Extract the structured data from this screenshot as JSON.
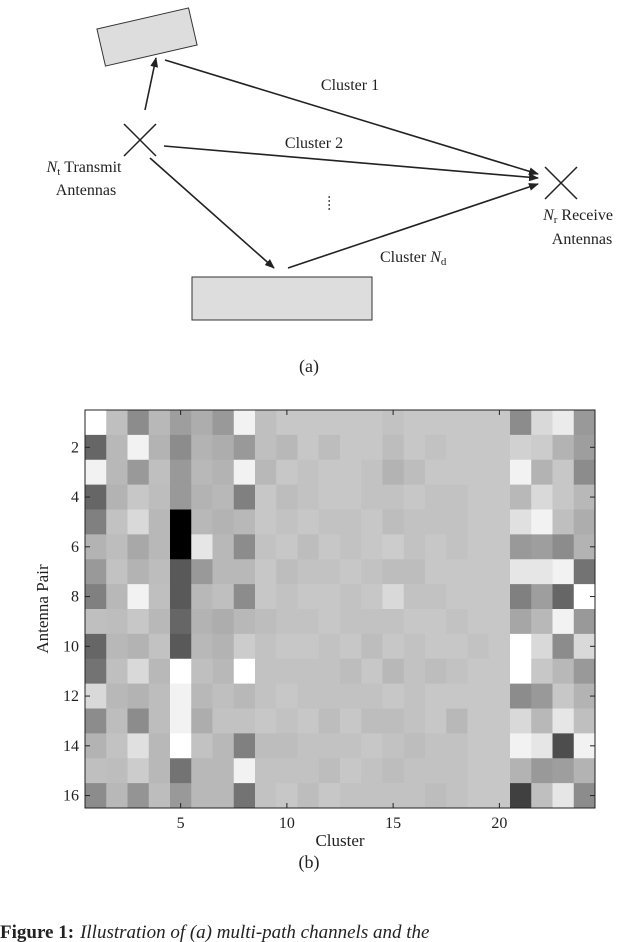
{
  "diagram": {
    "transmitter": {
      "symbol": "N",
      "subscript": "t",
      "line1": "Transmit",
      "line2": "Antennas"
    },
    "receiver": {
      "symbol": "N",
      "subscript": "r",
      "line1": "Receive",
      "line2": "Antennas"
    },
    "clusters": [
      {
        "text": "Cluster 1"
      },
      {
        "text": "Cluster 2"
      },
      {
        "text": "Cluster",
        "symbol": "N",
        "subscript": "d"
      }
    ],
    "panel_label": "(a)"
  },
  "chart_data": {
    "type": "heatmap",
    "xlabel": "Cluster",
    "ylabel": "Antenna Pair",
    "xlim": [
      0.5,
      24.5
    ],
    "ylim": [
      0.5,
      16.5
    ],
    "y_reversed": true,
    "xticks": [
      5,
      10,
      15,
      20
    ],
    "yticks": [
      2,
      4,
      6,
      8,
      10,
      12,
      14,
      16
    ],
    "colormap": "gray",
    "clim": [
      0,
      1
    ],
    "values": [
      [
        1.0,
        0.75,
        0.55,
        0.72,
        0.62,
        0.68,
        0.6,
        0.95,
        0.75,
        0.78,
        0.78,
        0.78,
        0.78,
        0.78,
        0.76,
        0.78,
        0.78,
        0.78,
        0.78,
        0.78,
        0.55,
        0.85,
        0.92,
        0.6
      ],
      [
        0.4,
        0.72,
        0.95,
        0.7,
        0.55,
        0.7,
        0.68,
        0.6,
        0.75,
        0.72,
        0.78,
        0.74,
        0.78,
        0.78,
        0.74,
        0.78,
        0.76,
        0.78,
        0.78,
        0.78,
        0.82,
        0.8,
        0.7,
        0.62
      ],
      [
        0.95,
        0.72,
        0.6,
        0.75,
        0.6,
        0.72,
        0.7,
        0.95,
        0.72,
        0.78,
        0.76,
        0.78,
        0.78,
        0.76,
        0.7,
        0.74,
        0.78,
        0.78,
        0.78,
        0.78,
        0.95,
        0.7,
        0.78,
        0.55
      ],
      [
        0.4,
        0.7,
        0.78,
        0.74,
        0.6,
        0.7,
        0.72,
        0.5,
        0.78,
        0.74,
        0.76,
        0.78,
        0.78,
        0.76,
        0.76,
        0.78,
        0.76,
        0.76,
        0.78,
        0.78,
        0.72,
        0.85,
        0.78,
        0.72
      ],
      [
        0.5,
        0.76,
        0.85,
        0.72,
        0.0,
        0.72,
        0.7,
        0.72,
        0.78,
        0.76,
        0.78,
        0.76,
        0.76,
        0.78,
        0.74,
        0.76,
        0.76,
        0.76,
        0.78,
        0.78,
        0.88,
        0.95,
        0.75,
        0.68
      ],
      [
        0.7,
        0.74,
        0.66,
        0.72,
        0.0,
        0.9,
        0.72,
        0.55,
        0.76,
        0.78,
        0.74,
        0.78,
        0.76,
        0.78,
        0.8,
        0.76,
        0.78,
        0.76,
        0.78,
        0.78,
        0.6,
        0.62,
        0.55,
        0.7
      ],
      [
        0.6,
        0.76,
        0.7,
        0.74,
        0.35,
        0.6,
        0.72,
        0.72,
        0.78,
        0.74,
        0.76,
        0.76,
        0.78,
        0.76,
        0.74,
        0.74,
        0.78,
        0.78,
        0.78,
        0.78,
        0.9,
        0.9,
        0.95,
        0.45
      ],
      [
        0.5,
        0.72,
        0.95,
        0.75,
        0.35,
        0.72,
        0.75,
        0.55,
        0.78,
        0.76,
        0.78,
        0.78,
        0.76,
        0.78,
        0.85,
        0.76,
        0.76,
        0.78,
        0.78,
        0.78,
        0.5,
        0.62,
        0.4,
        1.0
      ],
      [
        0.75,
        0.74,
        0.78,
        0.72,
        0.4,
        0.7,
        0.68,
        0.72,
        0.74,
        0.76,
        0.76,
        0.78,
        0.76,
        0.76,
        0.76,
        0.78,
        0.78,
        0.76,
        0.78,
        0.78,
        0.65,
        0.72,
        0.95,
        0.6
      ],
      [
        0.4,
        0.72,
        0.7,
        0.76,
        0.35,
        0.72,
        0.7,
        0.8,
        0.76,
        0.78,
        0.78,
        0.76,
        0.78,
        0.74,
        0.78,
        0.76,
        0.78,
        0.78,
        0.76,
        0.78,
        1.0,
        0.85,
        0.55,
        0.85
      ],
      [
        0.45,
        0.75,
        0.85,
        0.72,
        1.0,
        0.75,
        0.72,
        1.0,
        0.76,
        0.76,
        0.76,
        0.76,
        0.74,
        0.78,
        0.72,
        0.76,
        0.74,
        0.76,
        0.78,
        0.78,
        1.0,
        0.78,
        0.72,
        0.6
      ],
      [
        0.85,
        0.72,
        0.7,
        0.74,
        0.95,
        0.72,
        0.75,
        0.72,
        0.76,
        0.78,
        0.76,
        0.76,
        0.76,
        0.76,
        0.78,
        0.76,
        0.78,
        0.78,
        0.78,
        0.78,
        0.55,
        0.6,
        0.78,
        0.7
      ],
      [
        0.55,
        0.74,
        0.55,
        0.74,
        0.95,
        0.68,
        0.76,
        0.76,
        0.78,
        0.76,
        0.78,
        0.74,
        0.78,
        0.74,
        0.74,
        0.76,
        0.78,
        0.72,
        0.78,
        0.78,
        0.85,
        0.72,
        0.9,
        0.75
      ],
      [
        0.7,
        0.76,
        0.88,
        0.72,
        1.0,
        0.76,
        0.72,
        0.5,
        0.74,
        0.74,
        0.76,
        0.76,
        0.76,
        0.78,
        0.76,
        0.74,
        0.76,
        0.76,
        0.78,
        0.78,
        0.95,
        0.9,
        0.3,
        0.95
      ],
      [
        0.75,
        0.74,
        0.8,
        0.72,
        0.45,
        0.72,
        0.72,
        0.95,
        0.76,
        0.76,
        0.76,
        0.74,
        0.78,
        0.76,
        0.74,
        0.76,
        0.76,
        0.76,
        0.78,
        0.78,
        0.7,
        0.6,
        0.62,
        0.7
      ],
      [
        0.55,
        0.72,
        0.58,
        0.74,
        0.6,
        0.72,
        0.72,
        0.45,
        0.76,
        0.78,
        0.74,
        0.78,
        0.76,
        0.76,
        0.76,
        0.76,
        0.74,
        0.76,
        0.78,
        0.78,
        0.25,
        0.75,
        0.9,
        0.55
      ]
    ],
    "panel_label": "(b)"
  },
  "caption": {
    "label": "Figure 1:",
    "text": "Illustration of (a) multi-path channels and the"
  }
}
